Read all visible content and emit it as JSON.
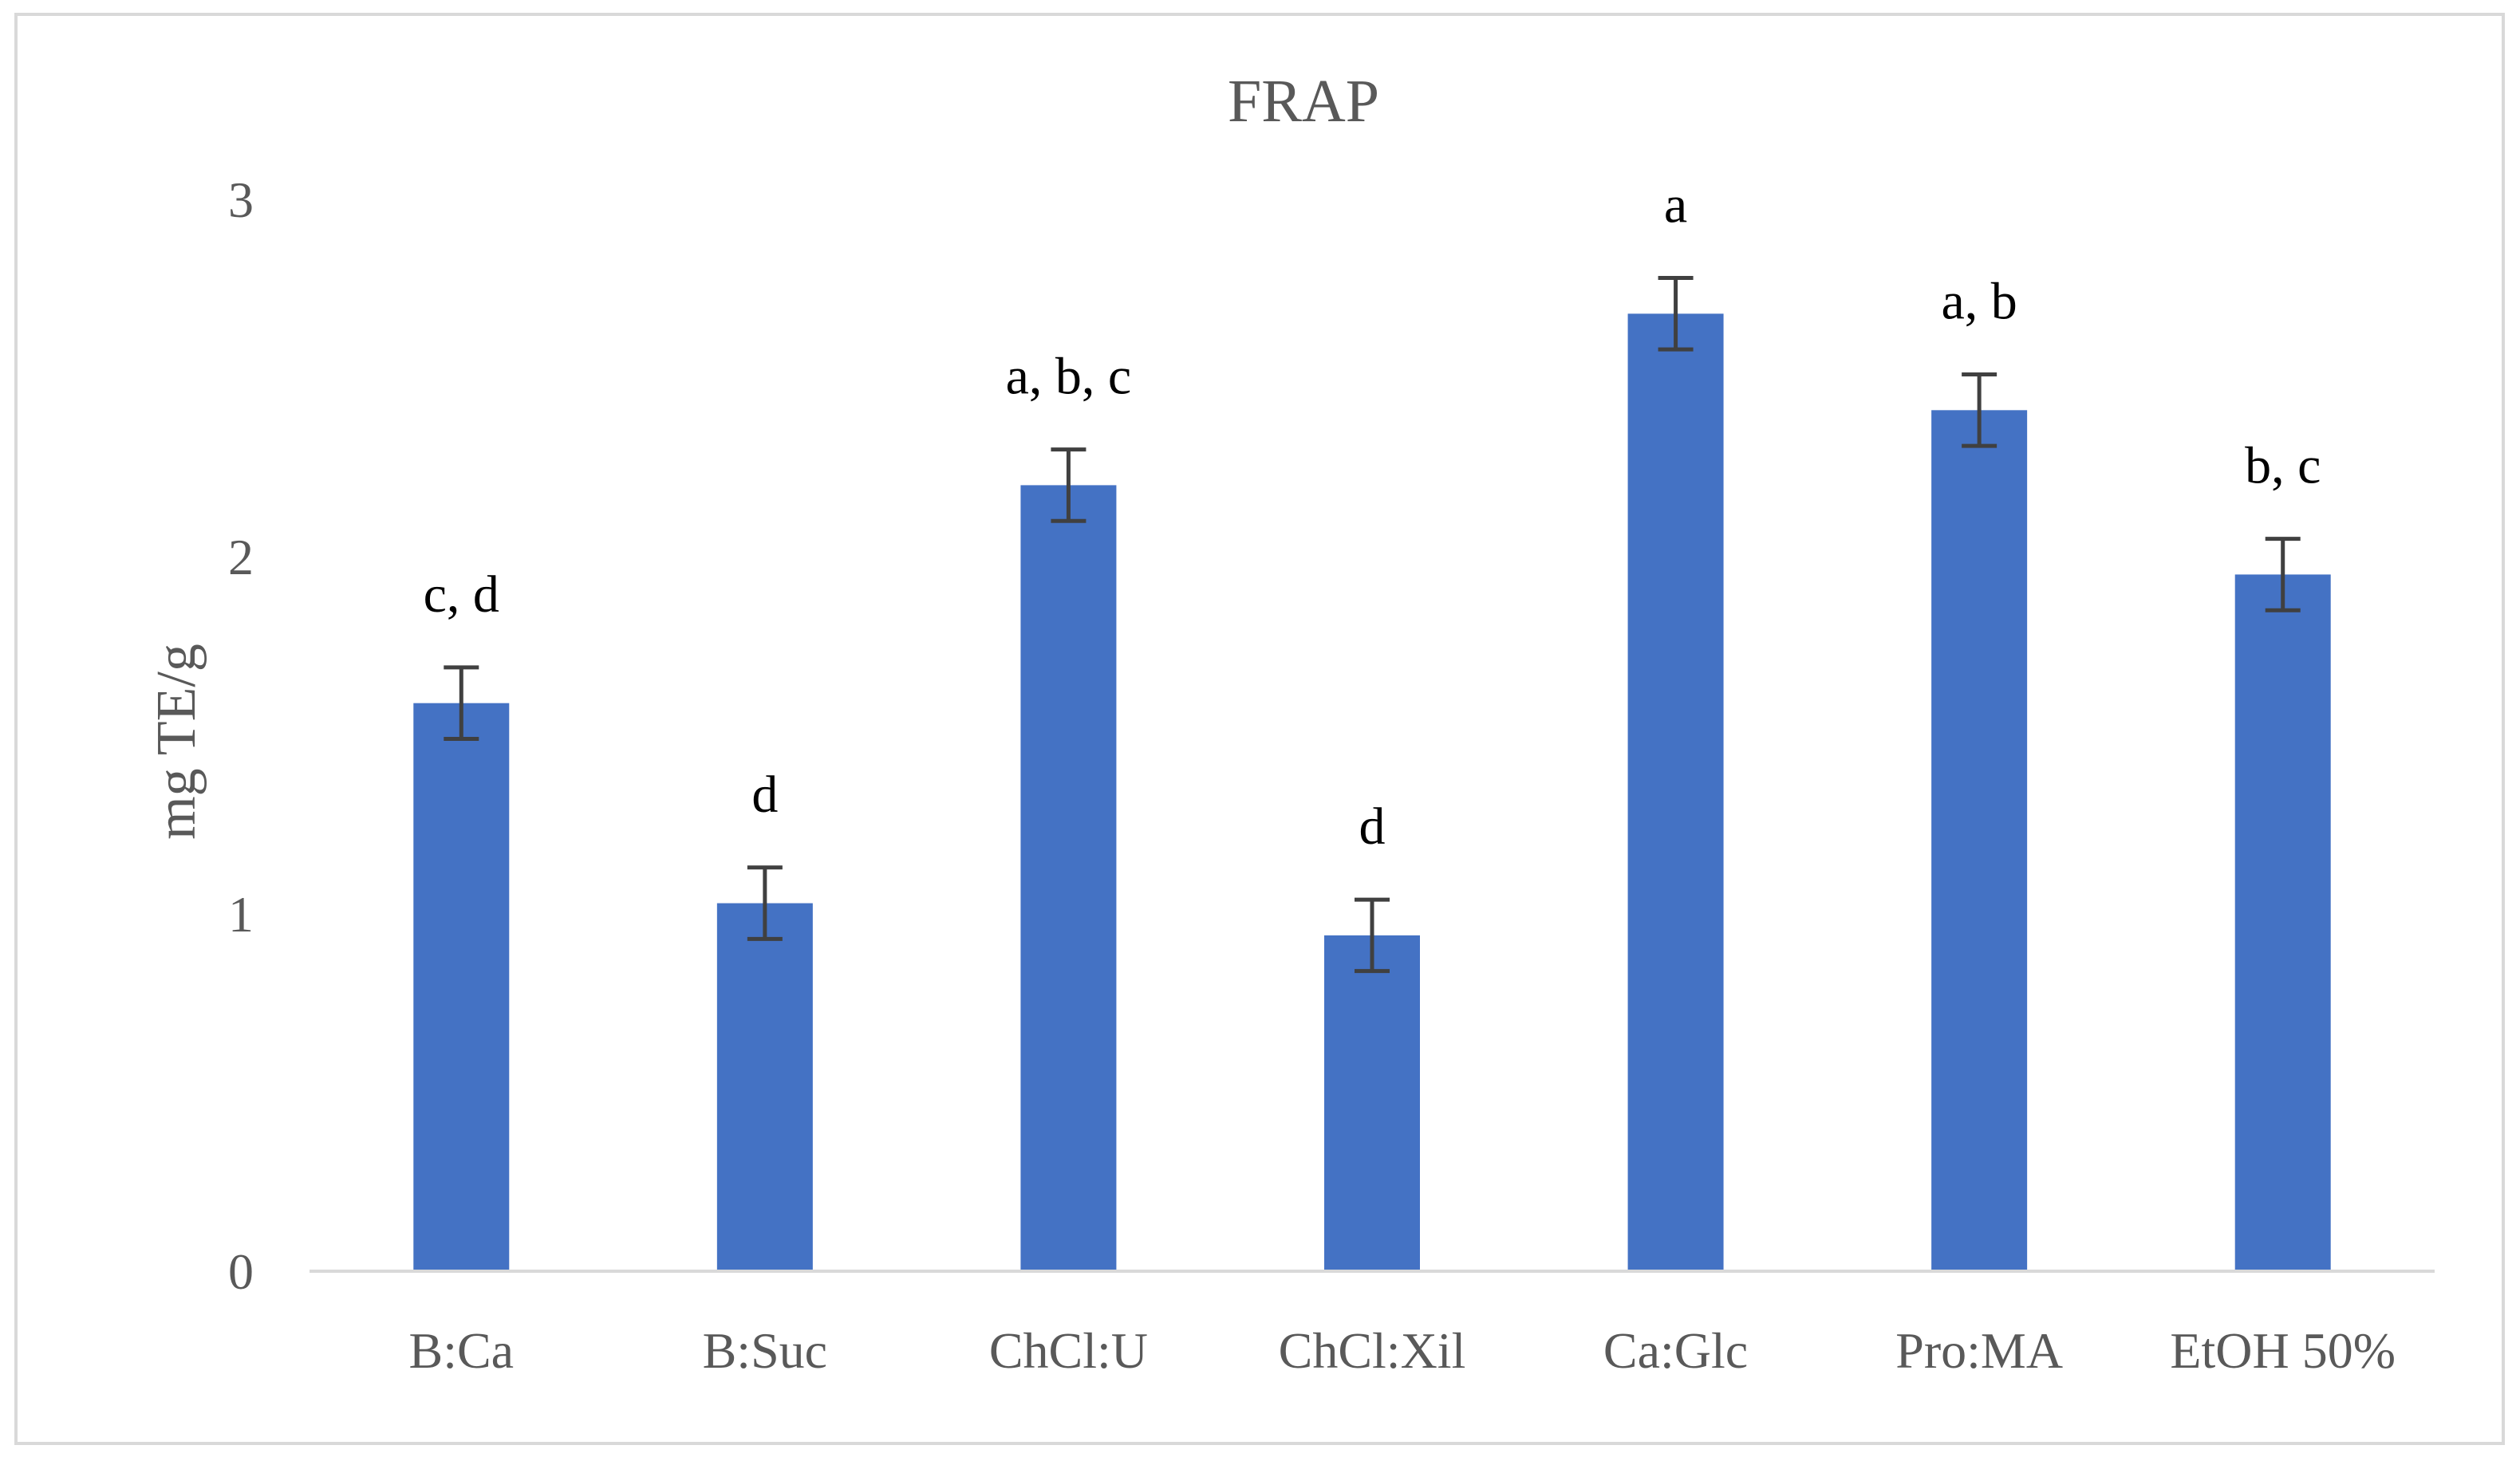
{
  "chart_data": {
    "type": "bar",
    "title": "FRAP",
    "xlabel": "",
    "ylabel": "mg TE/g",
    "ylim": [
      0,
      3
    ],
    "yticks": [
      0,
      1,
      2,
      3
    ],
    "grid": false,
    "legend": "none",
    "categories": [
      "B:Ca",
      "B:Suc",
      "ChCl:U",
      "ChCl:Xil",
      "Ca:Glc",
      "Pro:MA",
      "EtOH 50%"
    ],
    "values": [
      1.59,
      1.03,
      2.2,
      0.94,
      2.68,
      2.41,
      1.95
    ],
    "errors": [
      0.1,
      0.1,
      0.1,
      0.1,
      0.1,
      0.1,
      0.1
    ],
    "significance_labels": [
      "c, d",
      "d",
      "a, b, c",
      "d",
      "a",
      "a, b",
      "b, c"
    ],
    "bar_color": "#4472c4"
  }
}
